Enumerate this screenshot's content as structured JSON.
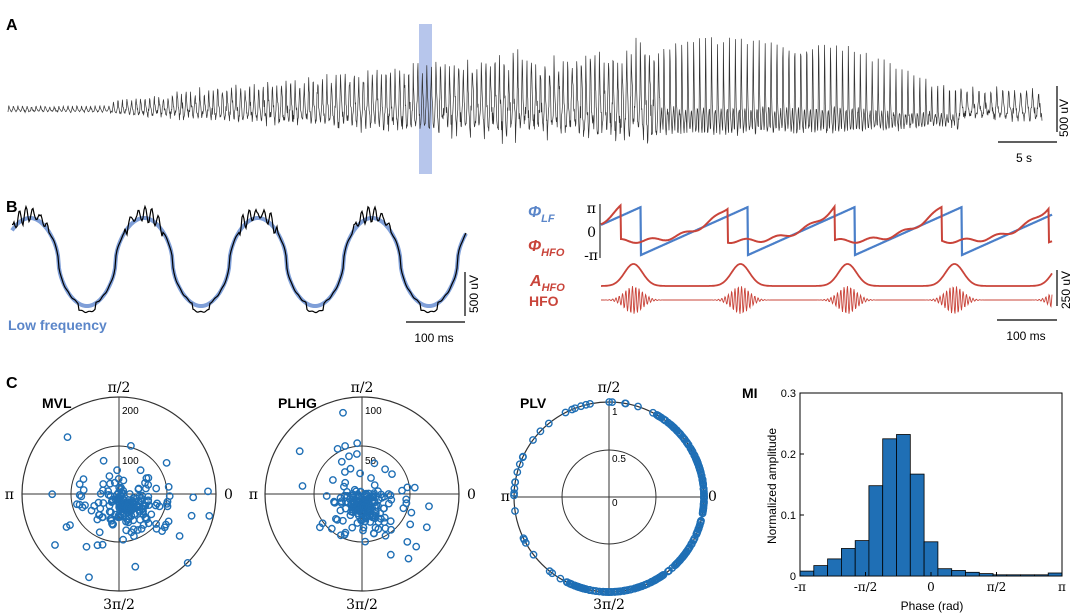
{
  "panels": {
    "A": {
      "letter": "A",
      "scalebar_y_label": "500 uV",
      "scalebar_x_label": "5 s"
    },
    "B": {
      "letter": "B",
      "low_freq_label": "Low frequency",
      "left_scalebar_y_label": "500 uV",
      "left_scalebar_x_label": "100 ms",
      "phi_lf_symbol": "Φ",
      "phi_lf_sub": "LF",
      "phi_hfo_symbol": "Φ",
      "phi_hfo_sub": "HFO",
      "a_hfo_symbol": "A",
      "a_hfo_sub": "HFO",
      "hfo_label": "HFO",
      "yticks_phase": [
        "π",
        "0",
        "-π"
      ],
      "right_scalebar_y_label": "250 uV",
      "right_scalebar_x_label": "100 ms"
    },
    "C": {
      "letter": "C",
      "polar_plots": [
        {
          "title": "MVL",
          "top": "π/2",
          "left": "π",
          "right": "0",
          "bottom": "3π/2",
          "rings": [
            "100",
            "200"
          ]
        },
        {
          "title": "PLHG",
          "top": "π/2",
          "left": "π",
          "right": "0",
          "bottom": "3π/2",
          "rings": [
            "50",
            "100"
          ]
        },
        {
          "title": "PLV",
          "top": "π/2",
          "left": "π",
          "right": "0",
          "bottom": "3π/2",
          "rings": [
            "0",
            "0.5",
            "1"
          ]
        }
      ]
    }
  },
  "colors": {
    "blue": "#1f6fb5",
    "light_blue": "#7f9fd8",
    "red": "#c9443a",
    "trace": "#222222",
    "highlight": "#9fb3e6"
  },
  "chart_data": [
    {
      "type": "bar",
      "title": "MI",
      "xlabel": "Phase (rad)",
      "ylabel": "Normalized amplitude",
      "ylim": [
        0,
        0.3
      ],
      "yticks": [
        "0",
        "0.1",
        "0.2",
        "0.3"
      ],
      "xticks": [
        "-π",
        "-π/2",
        "0",
        "π/2",
        "π"
      ],
      "xlim": [
        -3.1416,
        3.1416
      ],
      "bin_width": 0.3307,
      "x": [
        -2.976,
        -2.645,
        -2.315,
        -1.984,
        -1.653,
        -1.323,
        -0.992,
        -0.661,
        -0.331,
        0.0,
        0.331,
        0.661,
        0.992,
        1.323,
        1.653,
        1.984,
        2.315,
        2.645,
        2.976
      ],
      "values": [
        0.008,
        0.017,
        0.028,
        0.045,
        0.058,
        0.148,
        0.225,
        0.232,
        0.167,
        0.056,
        0.012,
        0.009,
        0.006,
        0.004,
        0.002,
        0.002,
        0.002,
        0.002,
        0.005
      ]
    }
  ]
}
